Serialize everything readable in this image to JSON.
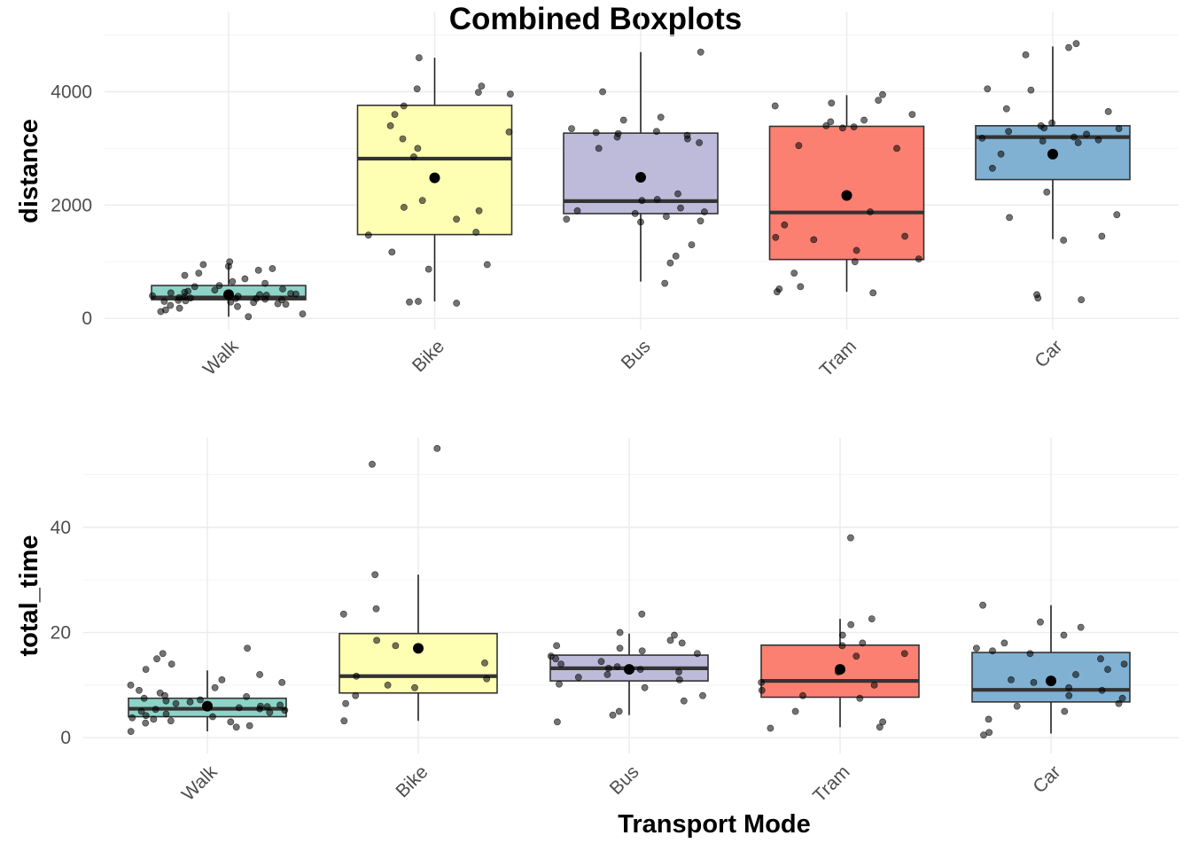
{
  "title": "Combined Boxplots",
  "chart_data": [
    {
      "type": "box",
      "ylabel": "distance",
      "xlabel": "",
      "categories": [
        "Walk",
        "Bike",
        "Bus",
        "Tram",
        "Car"
      ],
      "ylim": [
        -200,
        5400
      ],
      "yticks": [
        0,
        2000,
        4000
      ],
      "grid": true,
      "fill_colors": [
        "#8DD3C7",
        "#FFFFB3",
        "#BEBADA",
        "#FB8072",
        "#80B1D3"
      ],
      "boxes": [
        {
          "category": "Walk",
          "q1": 330,
          "median": 370,
          "q3": 580,
          "whisker_low": 30,
          "whisker_high": 950,
          "mean": 420
        },
        {
          "category": "Bike",
          "q1": 1480,
          "median": 2820,
          "q3": 3760,
          "whisker_low": 300,
          "whisker_high": 4600,
          "mean": 2480
        },
        {
          "category": "Bus",
          "q1": 1850,
          "median": 2070,
          "q3": 3270,
          "whisker_low": 650,
          "whisker_high": 4700,
          "mean": 2490
        },
        {
          "category": "Tram",
          "q1": 1040,
          "median": 1870,
          "q3": 3390,
          "whisker_low": 470,
          "whisker_high": 3940,
          "mean": 2170
        },
        {
          "category": "Car",
          "q1": 2450,
          "median": 3200,
          "q3": 3400,
          "whisker_low": 1400,
          "whisker_high": 4800,
          "mean": 2900
        }
      ],
      "points": [
        {
          "category": "Walk",
          "values": [
            30,
            80,
            120,
            150,
            180,
            210,
            230,
            250,
            260,
            280,
            290,
            300,
            310,
            320,
            330,
            340,
            350,
            350,
            360,
            370,
            380,
            390,
            400,
            410,
            420,
            430,
            440,
            450,
            460,
            480,
            500,
            520,
            560,
            580,
            620,
            650,
            700,
            760,
            800,
            850,
            880,
            920,
            950,
            1000
          ]
        },
        {
          "category": "Bike",
          "values": [
            270,
            290,
            300,
            870,
            950,
            1170,
            1470,
            1520,
            1750,
            1900,
            1960,
            2080,
            2850,
            3000,
            3170,
            3290,
            3400,
            3600,
            3750,
            3960,
            3990,
            4050,
            4100,
            4600
          ]
        },
        {
          "category": "Bus",
          "values": [
            620,
            980,
            1100,
            1300,
            1700,
            1720,
            1750,
            1800,
            1850,
            1880,
            1900,
            1950,
            2080,
            2100,
            2200,
            3000,
            3100,
            3170,
            3200,
            3230,
            3260,
            3280,
            3300,
            3350,
            3500,
            3550,
            4000,
            4700
          ]
        },
        {
          "category": "Tram",
          "values": [
            450,
            470,
            520,
            560,
            800,
            1000,
            1050,
            1200,
            1390,
            1430,
            1450,
            1650,
            1880,
            3000,
            3050,
            3360,
            3380,
            3400,
            3470,
            3500,
            3600,
            3750,
            3800,
            3850,
            3950
          ]
        },
        {
          "category": "Car",
          "values": [
            330,
            360,
            420,
            1380,
            1450,
            1780,
            1830,
            2230,
            2650,
            2900,
            3100,
            3130,
            3150,
            3180,
            3200,
            3250,
            3300,
            3350,
            3360,
            3400,
            3450,
            3650,
            3700,
            4030,
            4050,
            4650,
            4780,
            4850
          ]
        }
      ]
    },
    {
      "type": "box",
      "ylabel": "total_time",
      "xlabel": "Transport Mode",
      "categories": [
        "Walk",
        "Bike",
        "Bus",
        "Tram",
        "Car"
      ],
      "ylim": [
        -3,
        57
      ],
      "yticks": [
        0,
        20,
        40
      ],
      "grid": true,
      "fill_colors": [
        "#8DD3C7",
        "#FFFFB3",
        "#BEBADA",
        "#FB8072",
        "#80B1D3"
      ],
      "boxes": [
        {
          "category": "Walk",
          "q1": 4.0,
          "median": 5.5,
          "q3": 7.5,
          "whisker_low": 1.2,
          "whisker_high": 12.8,
          "mean": 6.0
        },
        {
          "category": "Bike",
          "q1": 8.5,
          "median": 11.7,
          "q3": 19.8,
          "whisker_low": 3.2,
          "whisker_high": 31.0,
          "mean": 17.0
        },
        {
          "category": "Bus",
          "q1": 10.8,
          "median": 13.2,
          "q3": 15.7,
          "whisker_low": 4.3,
          "whisker_high": 19.8,
          "mean": 13.0
        },
        {
          "category": "Tram",
          "q1": 7.7,
          "median": 10.8,
          "q3": 17.6,
          "whisker_low": 2.0,
          "whisker_high": 22.6,
          "mean": 13.0
        },
        {
          "category": "Car",
          "q1": 6.8,
          "median": 9.1,
          "q3": 16.2,
          "whisker_low": 0.8,
          "whisker_high": 25.2,
          "mean": 10.8
        }
      ],
      "points": [
        {
          "category": "Walk",
          "values": [
            1.2,
            2.0,
            2.3,
            2.8,
            3.0,
            3.2,
            3.5,
            3.8,
            4.0,
            4.2,
            4.5,
            4.8,
            5.0,
            5.2,
            5.4,
            5.5,
            5.7,
            5.9,
            6.0,
            6.2,
            6.5,
            6.8,
            7.0,
            7.2,
            7.5,
            7.8,
            8.0,
            8.5,
            9.0,
            9.5,
            10.0,
            10.5,
            11.0,
            12.0,
            13.0,
            14.0,
            15.0,
            16.0,
            17.0
          ]
        },
        {
          "category": "Bike",
          "values": [
            3.2,
            6.5,
            8.0,
            9.5,
            10.0,
            11.2,
            11.7,
            14.2,
            17.5,
            18.5,
            23.5,
            24.5,
            31.0,
            52.0,
            55.0
          ]
        },
        {
          "category": "Bus",
          "values": [
            3.0,
            4.3,
            5.0,
            7.0,
            8.0,
            9.5,
            10.2,
            11.0,
            11.5,
            12.0,
            12.5,
            13.0,
            13.2,
            13.5,
            14.0,
            14.5,
            15.0,
            15.5,
            16.0,
            16.5,
            17.0,
            17.5,
            18.0,
            18.5,
            19.5,
            20.0,
            23.5
          ]
        },
        {
          "category": "Tram",
          "values": [
            1.8,
            2.0,
            3.0,
            5.0,
            7.5,
            8.0,
            9.0,
            10.0,
            10.5,
            12.5,
            15.5,
            16.0,
            17.5,
            18.0,
            19.5,
            21.5,
            22.6,
            38.0
          ]
        },
        {
          "category": "Car",
          "values": [
            0.5,
            1.0,
            3.5,
            5.0,
            6.0,
            6.5,
            7.5,
            8.0,
            9.0,
            9.5,
            10.5,
            11.0,
            12.0,
            13.0,
            14.0,
            15.0,
            16.0,
            16.5,
            17.0,
            18.0,
            19.5,
            21.0,
            22.0,
            25.2
          ]
        }
      ]
    }
  ]
}
